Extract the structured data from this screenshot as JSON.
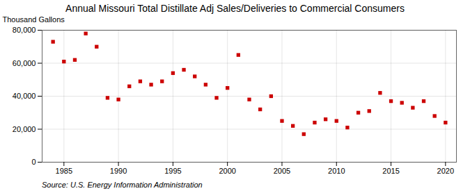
{
  "chart_data": {
    "type": "scatter",
    "title": "Annual Missouri Total Distillate Adj Sales/Deliveries to Commercial Consumers",
    "ylabel": "Thousand Gallons",
    "source": "Source: U.S. Energy Information Administration",
    "x": [
      1984,
      1985,
      1986,
      1987,
      1988,
      1989,
      1990,
      1991,
      1992,
      1993,
      1994,
      1995,
      1996,
      1997,
      1998,
      1999,
      2000,
      2001,
      2002,
      2003,
      2004,
      2005,
      2006,
      2007,
      2008,
      2009,
      2010,
      2011,
      2012,
      2013,
      2014,
      2015,
      2016,
      2017,
      2018,
      2019,
      2020
    ],
    "values": [
      73000,
      61000,
      62000,
      78000,
      70000,
      39000,
      38000,
      46000,
      49000,
      47000,
      49000,
      54000,
      56000,
      52000,
      47000,
      39000,
      45000,
      65000,
      38000,
      32000,
      40000,
      25000,
      22000,
      17000,
      24000,
      26000,
      25000,
      21000,
      30000,
      31000,
      42000,
      37000,
      36000,
      33000,
      37000,
      28000,
      24000
    ],
    "color": "#cc0000",
    "marker": "square",
    "xlim": [
      1983,
      2021
    ],
    "xticks": [
      1985,
      1990,
      1995,
      2000,
      2005,
      2010,
      2015,
      2020
    ],
    "ylim": [
      0,
      80000
    ],
    "yticks": [
      0,
      {
        "value": 20000,
        "label": "20,000"
      },
      {
        "value": 40000,
        "label": "40,000"
      },
      {
        "value": 60000,
        "label": "60,000"
      },
      {
        "value": 80000,
        "label": "80,000"
      }
    ],
    "grid": true
  }
}
